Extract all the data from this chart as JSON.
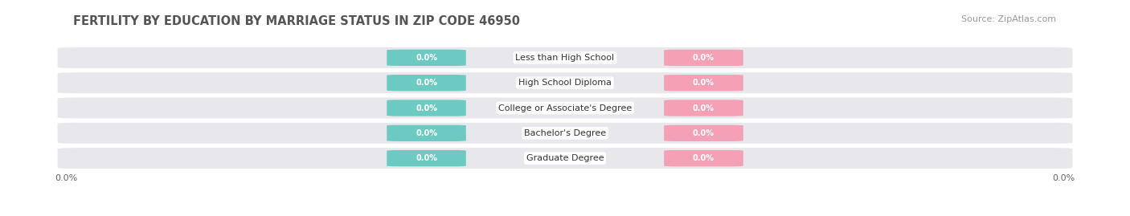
{
  "title": "FERTILITY BY EDUCATION BY MARRIAGE STATUS IN ZIP CODE 46950",
  "source": "Source: ZipAtlas.com",
  "categories": [
    "Less than High School",
    "High School Diploma",
    "College or Associate's Degree",
    "Bachelor's Degree",
    "Graduate Degree"
  ],
  "married_values": [
    0.0,
    0.0,
    0.0,
    0.0,
    0.0
  ],
  "unmarried_values": [
    0.0,
    0.0,
    0.0,
    0.0,
    0.0
  ],
  "married_color": "#6dcac2",
  "unmarried_color": "#f4a0b5",
  "row_bg_color": "#e8e8ec",
  "label_color": "#ffffff",
  "category_label_color": "#333333",
  "title_color": "#555555",
  "source_color": "#999999",
  "title_fontsize": 10.5,
  "source_fontsize": 8,
  "axis_label_fontsize": 8,
  "bar_label_fontsize": 7,
  "category_fontsize": 8,
  "legend_fontsize": 9,
  "figure_bg": "#ffffff",
  "left_label": "0.0%",
  "right_label": "0.0%"
}
